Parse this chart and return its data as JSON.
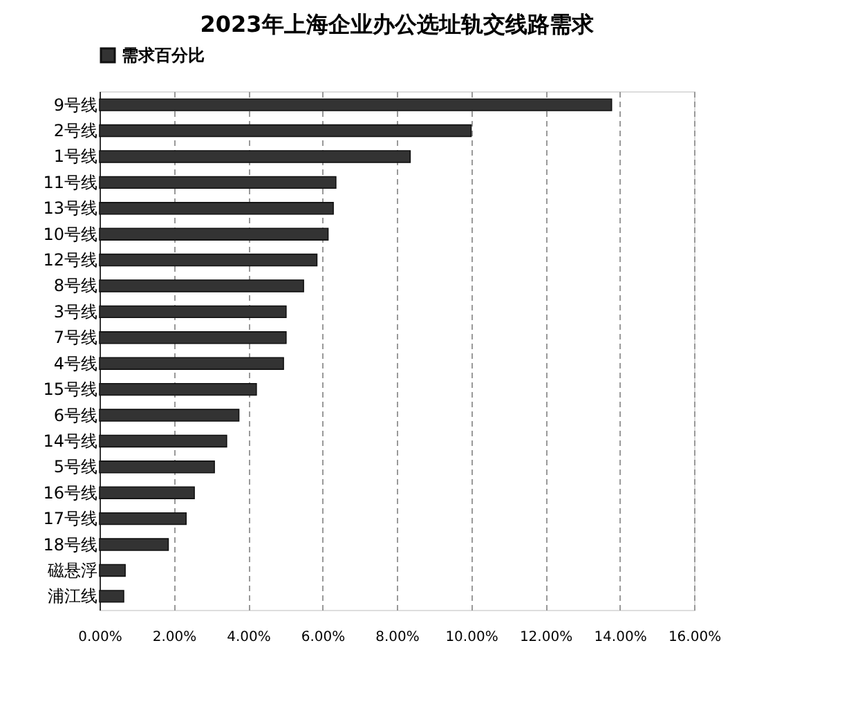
{
  "chart_data": {
    "type": "bar",
    "orientation": "horizontal",
    "title": "2023年上海企业办公选址轨交线路需求",
    "categories": [
      "9号线",
      "2号线",
      "1号线",
      "11号线",
      "13号线",
      "10号线",
      "12号线",
      "8号线",
      "3号线",
      "7号线",
      "4号线",
      "15号线",
      "6号线",
      "14号线",
      "5号线",
      "16号线",
      "17号线",
      "18号线",
      "磁悬浮",
      "浦江线"
    ],
    "series": [
      {
        "name": "需求百分比",
        "color": "#333333",
        "values": [
          13.78,
          10.0,
          8.36,
          6.36,
          6.29,
          6.15,
          5.85,
          5.49,
          5.02,
          5.02,
          4.95,
          4.22,
          3.75,
          3.42,
          3.09,
          2.55,
          2.33,
          1.85,
          0.69,
          0.65
        ]
      }
    ],
    "xlim": [
      0,
      16
    ],
    "xticks": [
      {
        "value": 0,
        "label": "0.00%"
      },
      {
        "value": 2,
        "label": "2.00%"
      },
      {
        "value": 4,
        "label": "4.00%"
      },
      {
        "value": 6,
        "label": "6.00%"
      },
      {
        "value": 8,
        "label": "8.00%"
      },
      {
        "value": 10,
        "label": "10.00%"
      },
      {
        "value": 12,
        "label": "12.00%"
      },
      {
        "value": 14,
        "label": "14.00%"
      },
      {
        "value": 16,
        "label": "16.00%"
      }
    ],
    "grid": "x",
    "legend": "top"
  }
}
